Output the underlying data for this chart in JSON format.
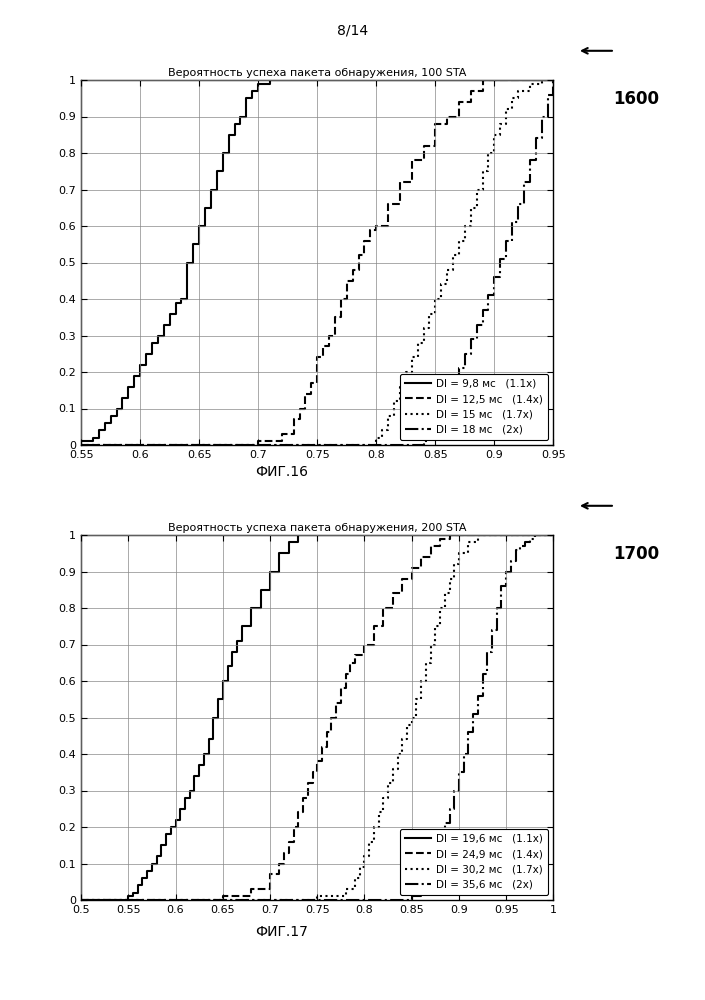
{
  "fig1": {
    "title": "Вероятность успеха пакета обнаружения, 100 STA",
    "label": "ФИГ.16",
    "fig_label_num": "1600",
    "xlim": [
      0.55,
      0.95
    ],
    "xticks": [
      0.55,
      0.6,
      0.65,
      0.7,
      0.75,
      0.8,
      0.85,
      0.9,
      0.95
    ],
    "ylim": [
      0,
      1
    ],
    "yticks": [
      0,
      0.1,
      0.2,
      0.3,
      0.4,
      0.5,
      0.6,
      0.7,
      0.8,
      0.9,
      1
    ],
    "legend_entries": [
      {
        "label": "DI = 9,8 мс",
        "suffix": "(1.1x)",
        "linestyle": "solid",
        "linewidth": 1.5
      },
      {
        "label": "DI = 12,5 мс",
        "suffix": "(1.4x)",
        "linestyle": "dashed",
        "linewidth": 1.5
      },
      {
        "label": "DI = 15 мс",
        "suffix": "(1.7x)",
        "linestyle": "dotted",
        "linewidth": 1.5
      },
      {
        "label": "DI = 18 мс",
        "suffix": "(2x)",
        "linestyle": "dashdot",
        "linewidth": 1.5
      }
    ],
    "curves": [
      {
        "x": [
          0.55,
          0.56,
          0.565,
          0.57,
          0.575,
          0.58,
          0.585,
          0.59,
          0.595,
          0.6,
          0.605,
          0.61,
          0.615,
          0.62,
          0.625,
          0.63,
          0.635,
          0.64,
          0.645,
          0.65,
          0.655,
          0.66,
          0.665,
          0.67,
          0.675,
          0.68,
          0.685,
          0.69,
          0.695,
          0.7,
          0.71,
          0.72,
          0.73,
          0.95
        ],
        "y": [
          0.01,
          0.02,
          0.04,
          0.06,
          0.08,
          0.1,
          0.13,
          0.16,
          0.19,
          0.22,
          0.25,
          0.28,
          0.3,
          0.33,
          0.36,
          0.39,
          0.4,
          0.5,
          0.55,
          0.6,
          0.65,
          0.7,
          0.75,
          0.8,
          0.85,
          0.88,
          0.9,
          0.95,
          0.97,
          0.99,
          1.0,
          1.0,
          1.0,
          1.0
        ],
        "linestyle": "solid",
        "linewidth": 1.5
      },
      {
        "x": [
          0.55,
          0.65,
          0.7,
          0.72,
          0.73,
          0.735,
          0.74,
          0.745,
          0.75,
          0.755,
          0.76,
          0.765,
          0.77,
          0.775,
          0.78,
          0.785,
          0.79,
          0.795,
          0.8,
          0.81,
          0.82,
          0.83,
          0.84,
          0.85,
          0.86,
          0.87,
          0.88,
          0.89,
          0.9,
          0.95
        ],
        "y": [
          0.0,
          0.0,
          0.01,
          0.03,
          0.07,
          0.1,
          0.14,
          0.17,
          0.24,
          0.27,
          0.3,
          0.35,
          0.4,
          0.45,
          0.48,
          0.52,
          0.56,
          0.59,
          0.6,
          0.66,
          0.72,
          0.78,
          0.82,
          0.88,
          0.9,
          0.94,
          0.97,
          1.0,
          1.0,
          1.0
        ],
        "linestyle": "dashed",
        "linewidth": 1.5
      },
      {
        "x": [
          0.55,
          0.75,
          0.8,
          0.805,
          0.81,
          0.815,
          0.82,
          0.825,
          0.83,
          0.835,
          0.84,
          0.845,
          0.85,
          0.855,
          0.86,
          0.865,
          0.87,
          0.875,
          0.88,
          0.885,
          0.89,
          0.895,
          0.9,
          0.905,
          0.91,
          0.915,
          0.92,
          0.93,
          0.94,
          0.95
        ],
        "y": [
          0.0,
          0.0,
          0.02,
          0.04,
          0.08,
          0.12,
          0.16,
          0.2,
          0.24,
          0.28,
          0.32,
          0.36,
          0.4,
          0.44,
          0.48,
          0.52,
          0.56,
          0.6,
          0.65,
          0.7,
          0.75,
          0.8,
          0.85,
          0.88,
          0.92,
          0.95,
          0.97,
          0.99,
          1.0,
          1.0
        ],
        "linestyle": "dotted",
        "linewidth": 1.5
      },
      {
        "x": [
          0.55,
          0.8,
          0.84,
          0.845,
          0.85,
          0.855,
          0.86,
          0.865,
          0.87,
          0.875,
          0.88,
          0.885,
          0.89,
          0.895,
          0.9,
          0.905,
          0.91,
          0.915,
          0.92,
          0.925,
          0.93,
          0.935,
          0.94,
          0.945,
          0.95
        ],
        "y": [
          0.0,
          0.0,
          0.01,
          0.03,
          0.06,
          0.1,
          0.13,
          0.17,
          0.21,
          0.25,
          0.29,
          0.33,
          0.37,
          0.41,
          0.46,
          0.51,
          0.56,
          0.61,
          0.66,
          0.72,
          0.78,
          0.84,
          0.9,
          0.96,
          1.0
        ],
        "linestyle": "dashdot",
        "linewidth": 1.5
      }
    ]
  },
  "fig2": {
    "title": "Вероятность успеха пакета обнаружения, 200 STA",
    "label": "ФИГ.17",
    "fig_label_num": "1700",
    "xlim": [
      0.5,
      1.0
    ],
    "xticks": [
      0.5,
      0.55,
      0.6,
      0.65,
      0.7,
      0.75,
      0.8,
      0.85,
      0.9,
      0.95,
      1.0
    ],
    "ylim": [
      0,
      1
    ],
    "yticks": [
      0,
      0.1,
      0.2,
      0.3,
      0.4,
      0.5,
      0.6,
      0.7,
      0.8,
      0.9,
      1
    ],
    "legend_entries": [
      {
        "label": "DI = 19,6 мс",
        "suffix": "(1.1x)",
        "linestyle": "solid",
        "linewidth": 1.5
      },
      {
        "label": "DI = 24,9 мс",
        "suffix": "(1.4x)",
        "linestyle": "dashed",
        "linewidth": 1.5
      },
      {
        "label": "DI = 30,2 мс",
        "suffix": "(1.7x)",
        "linestyle": "dotted",
        "linewidth": 1.5
      },
      {
        "label": "DI = 35,6 мс",
        "suffix": "(2x)",
        "linestyle": "dashdot",
        "linewidth": 1.5
      }
    ],
    "curves": [
      {
        "x": [
          0.5,
          0.55,
          0.555,
          0.56,
          0.565,
          0.57,
          0.575,
          0.58,
          0.585,
          0.59,
          0.595,
          0.6,
          0.605,
          0.61,
          0.615,
          0.62,
          0.625,
          0.63,
          0.635,
          0.64,
          0.645,
          0.65,
          0.655,
          0.66,
          0.665,
          0.67,
          0.68,
          0.69,
          0.7,
          0.71,
          0.72,
          0.73,
          0.74,
          0.75,
          1.0
        ],
        "y": [
          0.0,
          0.01,
          0.02,
          0.04,
          0.06,
          0.08,
          0.1,
          0.12,
          0.15,
          0.18,
          0.2,
          0.22,
          0.25,
          0.28,
          0.3,
          0.34,
          0.37,
          0.4,
          0.44,
          0.5,
          0.55,
          0.6,
          0.64,
          0.68,
          0.71,
          0.75,
          0.8,
          0.85,
          0.9,
          0.95,
          0.98,
          1.0,
          1.0,
          1.0,
          1.0
        ],
        "linestyle": "solid",
        "linewidth": 1.5
      },
      {
        "x": [
          0.5,
          0.6,
          0.65,
          0.68,
          0.7,
          0.71,
          0.715,
          0.72,
          0.725,
          0.73,
          0.735,
          0.74,
          0.745,
          0.75,
          0.755,
          0.76,
          0.765,
          0.77,
          0.775,
          0.78,
          0.785,
          0.79,
          0.8,
          0.81,
          0.82,
          0.83,
          0.84,
          0.85,
          0.86,
          0.87,
          0.88,
          0.89,
          0.9,
          1.0
        ],
        "y": [
          0.0,
          0.0,
          0.01,
          0.03,
          0.07,
          0.1,
          0.13,
          0.16,
          0.2,
          0.24,
          0.28,
          0.32,
          0.35,
          0.38,
          0.42,
          0.46,
          0.5,
          0.54,
          0.58,
          0.62,
          0.65,
          0.67,
          0.7,
          0.75,
          0.8,
          0.84,
          0.88,
          0.91,
          0.94,
          0.97,
          0.99,
          1.0,
          1.0,
          1.0
        ],
        "linestyle": "dashed",
        "linewidth": 1.5
      },
      {
        "x": [
          0.5,
          0.7,
          0.75,
          0.78,
          0.79,
          0.795,
          0.8,
          0.805,
          0.81,
          0.815,
          0.82,
          0.825,
          0.83,
          0.835,
          0.84,
          0.845,
          0.85,
          0.855,
          0.86,
          0.865,
          0.87,
          0.875,
          0.88,
          0.885,
          0.89,
          0.895,
          0.9,
          0.91,
          0.92,
          0.93,
          0.94,
          0.95,
          1.0
        ],
        "y": [
          0.0,
          0.0,
          0.01,
          0.03,
          0.06,
          0.09,
          0.12,
          0.16,
          0.2,
          0.24,
          0.28,
          0.32,
          0.36,
          0.4,
          0.44,
          0.48,
          0.5,
          0.55,
          0.6,
          0.65,
          0.7,
          0.75,
          0.8,
          0.84,
          0.88,
          0.92,
          0.95,
          0.98,
          1.0,
          1.0,
          1.0,
          1.0,
          1.0
        ],
        "linestyle": "dotted",
        "linewidth": 1.5
      },
      {
        "x": [
          0.5,
          0.75,
          0.85,
          0.86,
          0.865,
          0.87,
          0.875,
          0.88,
          0.885,
          0.89,
          0.895,
          0.9,
          0.905,
          0.91,
          0.915,
          0.92,
          0.925,
          0.93,
          0.935,
          0.94,
          0.945,
          0.95,
          0.955,
          0.96,
          0.965,
          0.97,
          0.975,
          0.98,
          0.99,
          1.0
        ],
        "y": [
          0.0,
          0.0,
          0.01,
          0.03,
          0.06,
          0.09,
          0.13,
          0.17,
          0.21,
          0.25,
          0.3,
          0.35,
          0.4,
          0.46,
          0.51,
          0.56,
          0.62,
          0.68,
          0.74,
          0.8,
          0.86,
          0.9,
          0.93,
          0.96,
          0.97,
          0.98,
          0.99,
          1.0,
          1.0,
          1.0
        ],
        "linestyle": "dashdot",
        "linewidth": 1.5
      }
    ]
  },
  "page_label": "8/14",
  "bg_color": "#ffffff",
  "line_color": "#000000"
}
